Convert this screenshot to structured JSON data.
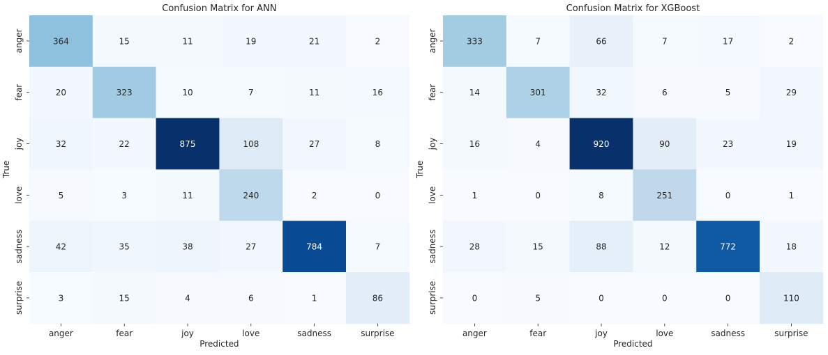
{
  "chart_data": [
    {
      "type": "heatmap",
      "title": "Confusion Matrix for ANN",
      "xlabel": "Predicted",
      "ylabel": "True",
      "x_categories": [
        "anger",
        "fear",
        "joy",
        "love",
        "sadness",
        "surprise"
      ],
      "y_categories": [
        "anger",
        "fear",
        "joy",
        "love",
        "sadness",
        "surprise"
      ],
      "values": [
        [
          364,
          15,
          11,
          19,
          21,
          2
        ],
        [
          20,
          323,
          10,
          7,
          11,
          16
        ],
        [
          32,
          22,
          875,
          108,
          27,
          8
        ],
        [
          5,
          3,
          11,
          240,
          2,
          0
        ],
        [
          42,
          35,
          38,
          27,
          784,
          7
        ],
        [
          3,
          15,
          4,
          6,
          1,
          86
        ]
      ],
      "colormap": "Blues",
      "color_low": "#f7fbff",
      "color_high": "#08306b",
      "colorbar": false
    },
    {
      "type": "heatmap",
      "title": "Confusion Matrix for XGBoost",
      "xlabel": "Predicted",
      "ylabel": "True",
      "x_categories": [
        "anger",
        "fear",
        "joy",
        "love",
        "sadness",
        "surprise"
      ],
      "y_categories": [
        "anger",
        "fear",
        "joy",
        "love",
        "sadness",
        "surprise"
      ],
      "values": [
        [
          333,
          7,
          66,
          7,
          17,
          2
        ],
        [
          14,
          301,
          32,
          6,
          5,
          29
        ],
        [
          16,
          4,
          920,
          90,
          23,
          19
        ],
        [
          1,
          0,
          8,
          251,
          0,
          1
        ],
        [
          28,
          15,
          88,
          12,
          772,
          18
        ],
        [
          0,
          5,
          0,
          0,
          0,
          110
        ]
      ],
      "colormap": "Blues",
      "color_low": "#f7fbff",
      "color_high": "#08306b",
      "colorbar": false
    }
  ]
}
